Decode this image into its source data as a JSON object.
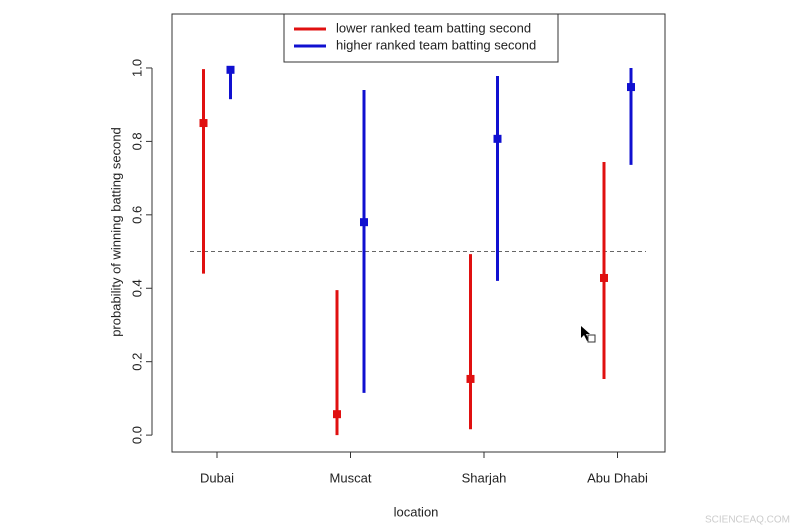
{
  "chart_data": {
    "type": "errorbar",
    "xlabel": "location",
    "ylabel": "probability of winning batting second",
    "categories": [
      "Dubai",
      "Muscat",
      "Sharjah",
      "Abu Dhabi"
    ],
    "series": [
      {
        "name": "lower ranked team batting second",
        "color": "#e01010",
        "values": [
          0.85,
          0.057,
          0.153,
          0.428
        ],
        "lower": [
          0.44,
          0.0,
          0.016,
          0.153
        ],
        "upper": [
          0.997,
          0.395,
          0.493,
          0.744
        ]
      },
      {
        "name": "higher ranked team batting second",
        "color": "#1010d0",
        "values": [
          0.995,
          0.58,
          0.807,
          0.948
        ],
        "lower": [
          0.915,
          0.115,
          0.42,
          0.736
        ],
        "upper": [
          1.0,
          0.94,
          0.978,
          1.0
        ]
      }
    ],
    "ylim": [
      -0.046,
      1.147
    ],
    "yticks": [
      {
        "value": 0,
        "label": "0.0"
      },
      0.2,
      0.4,
      0.6,
      0.8,
      {
        "value": 1,
        "label": "1.0"
      }
    ],
    "hline": 0.5,
    "legend": "top",
    "watermark": "SCIENCEAQ.COM"
  }
}
